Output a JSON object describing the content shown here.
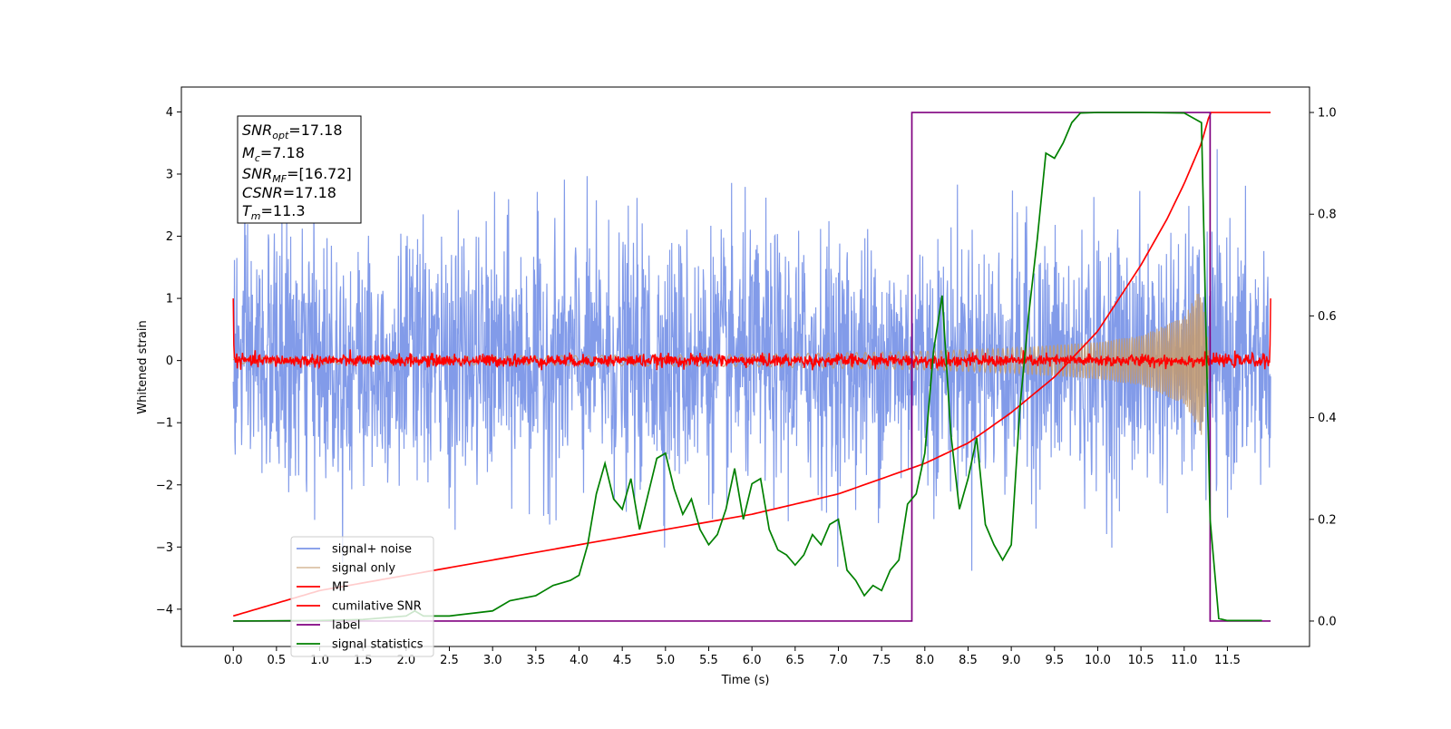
{
  "chart_data": {
    "type": "line",
    "xlabel": "Time (s)",
    "ylabel": "Whitened strain",
    "xlim": [
      -0.6,
      12.45
    ],
    "ylim": [
      -4.6,
      4.4
    ],
    "y2lim": [
      -0.05,
      1.05
    ],
    "xticks": [
      0.0,
      0.5,
      1.0,
      1.5,
      2.0,
      2.5,
      3.0,
      3.5,
      4.0,
      4.5,
      5.0,
      5.5,
      6.0,
      6.5,
      7.0,
      7.5,
      8.0,
      8.5,
      9.0,
      9.5,
      10.0,
      10.5,
      11.0,
      11.5
    ],
    "xtick_labels": [
      "0.0",
      "0.5",
      "1.0",
      "1.5",
      "2.0",
      "2.5",
      "3.0",
      "3.5",
      "4.0",
      "4.5",
      "5.0",
      "5.5",
      "6.0",
      "6.5",
      "7.0",
      "7.5",
      "8.0",
      "8.5",
      "9.0",
      "9.5",
      "10.0",
      "10.5",
      "11.0",
      "11.5"
    ],
    "yticks": [
      -4,
      -3,
      -2,
      -1,
      0,
      1,
      2,
      3,
      4
    ],
    "ytick_labels": [
      "−4",
      "−3",
      "−2",
      "−1",
      "0",
      "1",
      "2",
      "3",
      "4"
    ],
    "y2ticks": [
      0.0,
      0.2,
      0.4,
      0.6,
      0.8,
      1.0
    ],
    "y2tick_labels": [
      "0.0",
      "0.2",
      "0.4",
      "0.6",
      "0.8",
      "1.0"
    ],
    "grid": false,
    "legend_placement": "lower-left",
    "series": [
      {
        "name": "signal+ noise",
        "color": "#7b96e8",
        "axis": "left",
        "kind": "noise",
        "x_range": [
          0.0,
          12.0
        ],
        "amplitude_std": 1.0
      },
      {
        "name": "signal only",
        "color": "#c49a6c",
        "axis": "left",
        "kind": "chirp",
        "x_range": [
          0.0,
          11.3
        ],
        "envelope": {
          "x": [
            0.0,
            4.0,
            6.0,
            8.0,
            9.0,
            10.0,
            10.5,
            11.0,
            11.2,
            11.3
          ],
          "y": [
            0.05,
            0.08,
            0.1,
            0.15,
            0.2,
            0.3,
            0.4,
            0.7,
            1.2,
            0.0
          ]
        }
      },
      {
        "name": "MF",
        "color": "#ff0000",
        "axis": "left",
        "kind": "mf",
        "x_range": [
          0.0,
          12.0
        ],
        "noise_amplitude": 0.05,
        "edge_values": [
          1.0,
          1.0
        ]
      },
      {
        "name": "cumilative SNR",
        "color": "#ff0000",
        "axis": "right",
        "x": [
          0.0,
          1.0,
          2.0,
          3.0,
          4.0,
          5.0,
          6.0,
          7.0,
          7.5,
          8.0,
          8.5,
          9.0,
          9.5,
          10.0,
          10.5,
          10.8,
          11.0,
          11.2,
          11.3,
          12.0
        ],
        "y": [
          0.01,
          0.06,
          0.09,
          0.12,
          0.15,
          0.18,
          0.21,
          0.25,
          0.28,
          0.31,
          0.35,
          0.41,
          0.48,
          0.57,
          0.7,
          0.79,
          0.86,
          0.94,
          1.0,
          1.0
        ]
      },
      {
        "name": "label",
        "color": "#800080",
        "axis": "right",
        "x": [
          0.0,
          7.85,
          7.85,
          11.3,
          11.3,
          12.0
        ],
        "y": [
          0.0,
          0.0,
          1.0,
          1.0,
          0.0,
          0.0
        ]
      },
      {
        "name": "signal statistics",
        "color": "#008000",
        "axis": "right",
        "x": [
          0.0,
          1.0,
          1.5,
          2.0,
          2.1,
          2.2,
          2.5,
          3.0,
          3.2,
          3.5,
          3.6,
          3.7,
          3.8,
          3.9,
          4.0,
          4.1,
          4.2,
          4.3,
          4.4,
          4.5,
          4.6,
          4.7,
          4.8,
          4.9,
          5.0,
          5.1,
          5.2,
          5.3,
          5.4,
          5.5,
          5.6,
          5.7,
          5.8,
          5.9,
          6.0,
          6.1,
          6.2,
          6.3,
          6.4,
          6.5,
          6.6,
          6.7,
          6.8,
          6.9,
          7.0,
          7.1,
          7.2,
          7.3,
          7.4,
          7.5,
          7.6,
          7.7,
          7.8,
          7.9,
          8.0,
          8.1,
          8.2,
          8.3,
          8.4,
          8.5,
          8.6,
          8.7,
          8.8,
          8.9,
          9.0,
          9.1,
          9.2,
          9.3,
          9.4,
          9.5,
          9.6,
          9.7,
          9.8,
          10.0,
          10.5,
          11.0,
          11.2,
          11.3,
          11.4,
          11.5,
          11.9
        ],
        "y": [
          0.0,
          0.001,
          0.003,
          0.01,
          0.02,
          0.01,
          0.01,
          0.02,
          0.04,
          0.05,
          0.06,
          0.07,
          0.075,
          0.08,
          0.09,
          0.15,
          0.25,
          0.31,
          0.24,
          0.22,
          0.28,
          0.18,
          0.25,
          0.32,
          0.33,
          0.26,
          0.21,
          0.24,
          0.18,
          0.15,
          0.17,
          0.22,
          0.3,
          0.2,
          0.27,
          0.28,
          0.18,
          0.14,
          0.13,
          0.11,
          0.13,
          0.17,
          0.15,
          0.19,
          0.2,
          0.1,
          0.08,
          0.05,
          0.07,
          0.06,
          0.1,
          0.12,
          0.23,
          0.25,
          0.33,
          0.53,
          0.64,
          0.37,
          0.22,
          0.28,
          0.36,
          0.19,
          0.15,
          0.12,
          0.15,
          0.42,
          0.6,
          0.75,
          0.92,
          0.91,
          0.94,
          0.98,
          0.999,
          1.0,
          1.0,
          0.999,
          0.98,
          0.2,
          0.005,
          0.001,
          0.001
        ]
      }
    ],
    "info_box": [
      {
        "main": "SNR",
        "sub": "opt",
        "value": "=17.18"
      },
      {
        "main": "M",
        "sub": "c",
        "value": "=7.18"
      },
      {
        "main": "SNR",
        "sub": "MF",
        "value": "=[16.72]"
      },
      {
        "main": "CSNR",
        "sub": "",
        "value": "=17.18"
      },
      {
        "main": "T",
        "sub": "m",
        "value": "=11.3"
      }
    ]
  }
}
